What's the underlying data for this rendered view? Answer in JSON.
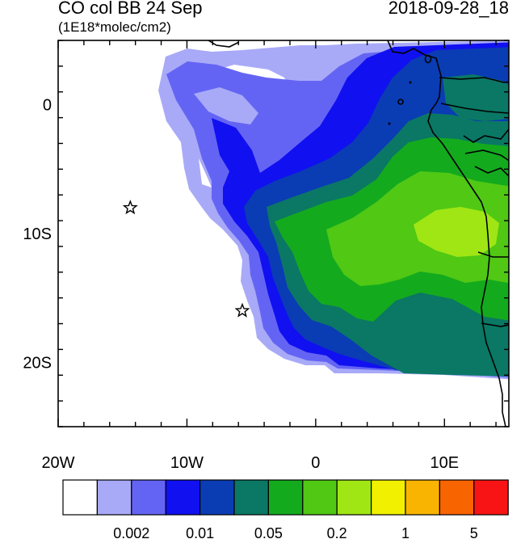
{
  "header": {
    "title": "CO col BB 24 Sep",
    "units": "(1E18*molec/cm2)",
    "datetime": "2018-09-28_18"
  },
  "map": {
    "lon_range": [
      -20,
      15
    ],
    "lat_range": [
      -25,
      5
    ],
    "x_ticks": [
      {
        "value": -20,
        "label": "20W"
      },
      {
        "value": -10,
        "label": "10W"
      },
      {
        "value": 0,
        "label": "0"
      },
      {
        "value": 10,
        "label": "10E"
      }
    ],
    "y_ticks": [
      {
        "value": 0,
        "label": "0"
      },
      {
        "value": -10,
        "label": "10S"
      },
      {
        "value": -20,
        "label": "20S"
      }
    ],
    "markers": [
      {
        "type": "star",
        "lon": -14.4,
        "lat": -8.0
      },
      {
        "type": "star",
        "lon": -5.7,
        "lat": -16.0
      }
    ]
  },
  "colorbar": {
    "colors": [
      "#ffffff",
      "#a8aaf8",
      "#6464f4",
      "#1010f0",
      "#0a3cb4",
      "#0a7864",
      "#14aa1e",
      "#50c814",
      "#a0e614",
      "#f0f000",
      "#f8b400",
      "#f86400",
      "#f81414"
    ],
    "labels": [
      {
        "after_box": 2,
        "text": "0.002"
      },
      {
        "after_box": 4,
        "text": "0.01"
      },
      {
        "after_box": 6,
        "text": "0.05"
      },
      {
        "after_box": 8,
        "text": "0.2"
      },
      {
        "after_box": 10,
        "text": "1"
      },
      {
        "after_box": 12,
        "text": "5"
      }
    ]
  }
}
